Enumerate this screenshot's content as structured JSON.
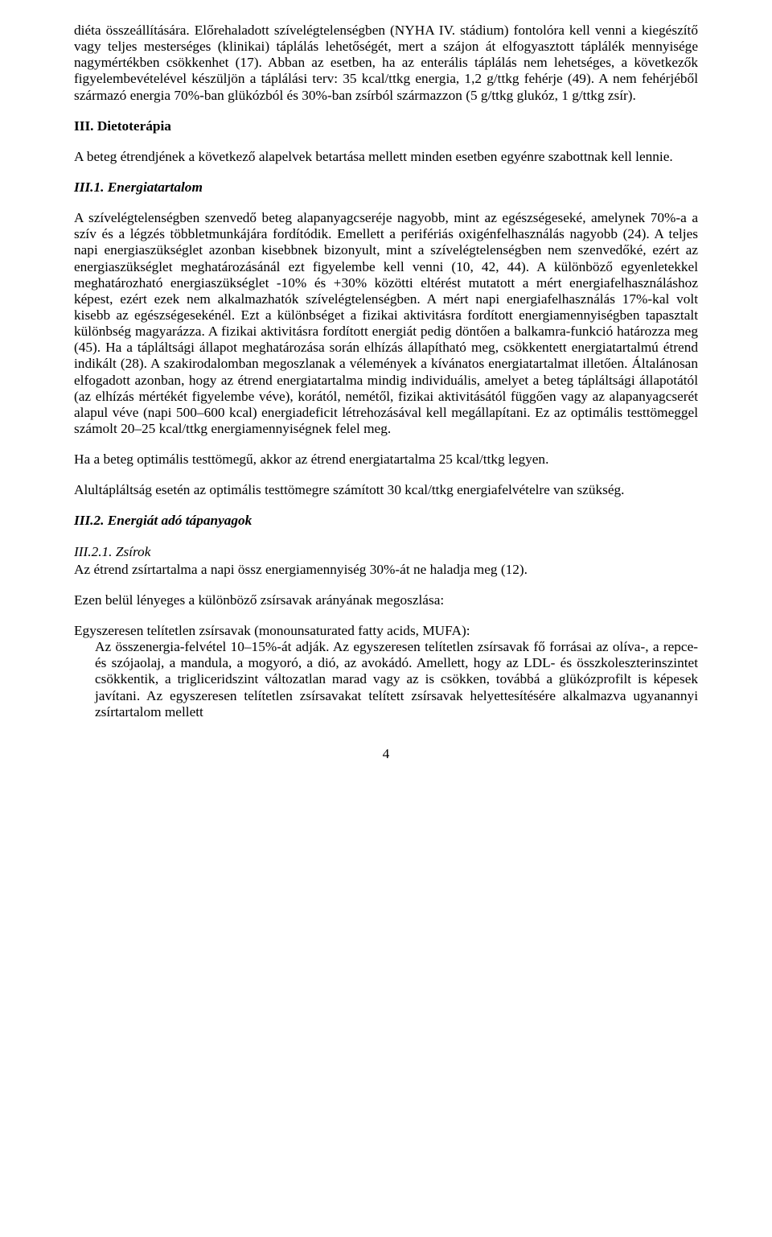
{
  "page": {
    "number": "4"
  },
  "paragraphs": {
    "p1": "diéta összeállítására. Előrehaladott szívelégtelenségben (NYHA IV. stádium) fontolóra kell venni a kiegészítő vagy teljes mesterséges (klinikai) táplálás lehetőségét, mert a szájon át elfogyasztott táplálék mennyisége nagymértékben csökkenhet (17). Abban az esetben, ha az enterális táplálás nem lehetséges, a következők figyelembevételével készüljön a táplálási terv: 35 kcal/ttkg energia, 1,2 g/ttkg fehérje (49). A nem fehérjéből származó energia 70%-ban glükózból és 30%-ban zsírból származzon (5 g/ttkg glukóz, 1 g/ttkg zsír).",
    "h3": "III. Dietoterápia",
    "p2": "A beteg étrendjének a következő alapelvek betartása mellett minden esetben egyénre szabottnak kell lennie.",
    "h3_1": "III.1. Energiatartalom",
    "p3": "A szívelégtelenségben szenvedő beteg alapanyagcseréje nagyobb, mint az egészségeseké, amelynek 70%-a a szív és a légzés többletmunkájára fordítódik. Emellett a perifériás oxigénfelhasználás nagyobb (24). A teljes napi energiaszükséglet azonban kisebbnek bizonyult, mint a szívelégtelenségben nem szenvedőké, ezért az energiaszükséglet meghatározásánál ezt figyelembe kell venni (10, 42, 44). A különböző egyenletekkel meghatározható energiaszükséglet -10% és +30% közötti eltérést mutatott a mért energiafelhasználáshoz képest, ezért ezek nem alkalmazhatók szívelégtelenségben. A mért napi energiafelhasználás 17%-kal volt kisebb az egészségesekénél. Ezt a különbséget a fizikai aktivitásra fordított energiamennyiségben tapasztalt különbség magyarázza. A fizikai aktivitásra fordított energiát pedig döntően a balkamra-funkció határozza meg (45). Ha a tápláltsági állapot meghatározása során elhízás állapítható meg, csökkentett energiatartalmú étrend indikált (28). A szakirodalomban megoszlanak a vélemények a kívánatos energiatartalmat illetően. Általánosan elfogadott azonban, hogy az étrend energiatartalma mindig individuális, amelyet a beteg tápláltsági állapotától (az elhízás mértékét figyelembe véve), korától, nemétől, fizikai aktivitásától függően vagy az alapanyagcserét alapul véve (napi 500–600 kcal) energiadeficit létrehozásával kell megállapítani. Ez az optimális testtömeggel számolt 20–25 kcal/ttkg energiamennyiségnek felel meg.",
    "p4": "Ha a beteg optimális testtömegű, akkor az étrend energiatartalma 25 kcal/ttkg legyen.",
    "p5": "Alultápláltság esetén az optimális testtömegre számított 30 kcal/ttkg energiafelvételre van szükség.",
    "h3_2": "III.2. Energiát adó tápanyagok",
    "s3_2_1": "III.2.1. Zsírok",
    "p6": "Az étrend zsírtartalma a napi össz energiamennyiség 30%-át ne haladja meg (12).",
    "p7": "Ezen belül lényeges a különböző zsírsavak arányának megoszlása:",
    "p8a": "Egyszeresen telítetlen zsírsavak (monounsaturated fatty acids, MUFA):",
    "p8b": "Az összenergia-felvétel 10–15%-át adják. Az egyszeresen telítetlen zsírsavak fő forrásai az olíva-, a repce- és szójaolaj, a mandula, a mogyoró, a dió, az avokádó. Amellett, hogy az LDL- és összkoleszterinszintet csökkentik, a trigliceridszint változatlan marad vagy az is csökken, továbbá a glükózprofilt is képesek javítani. Az egyszeresen telítetlen zsírsavakat telített zsírsavak helyettesítésére alkalmazva ugyanannyi zsírtartalom mellett"
  }
}
